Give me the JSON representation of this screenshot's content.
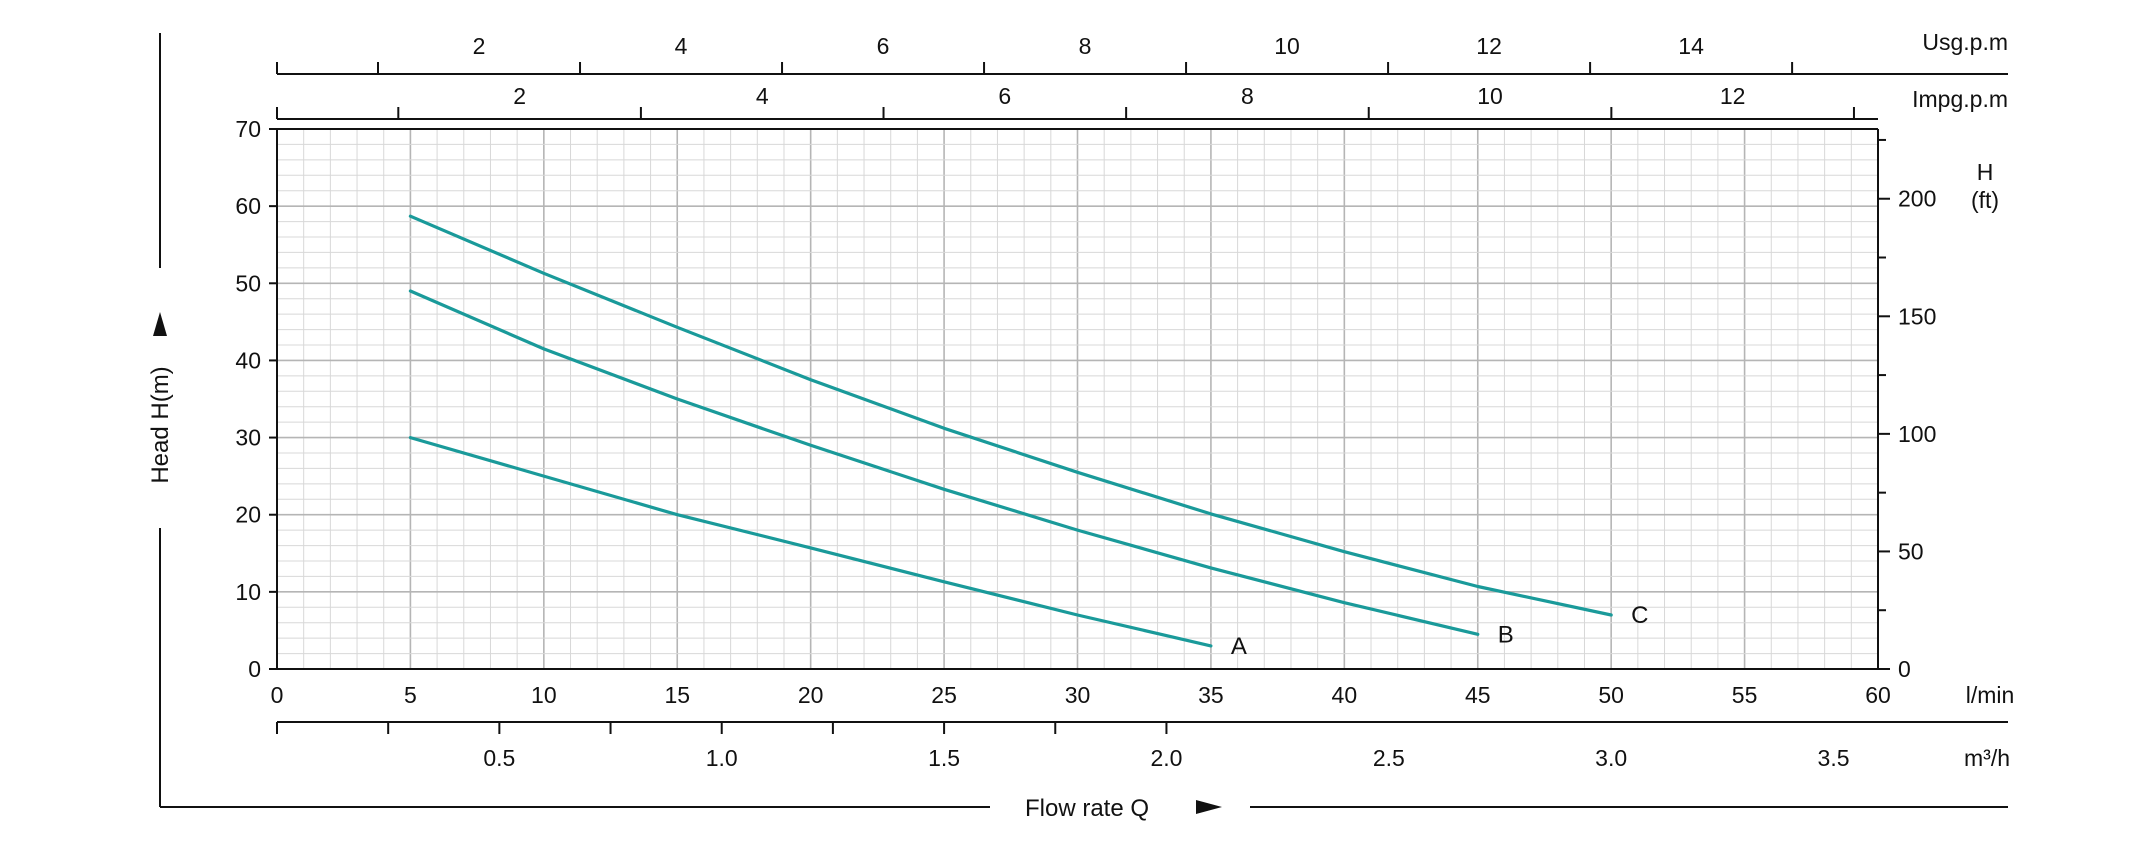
{
  "chart_data": {
    "type": "line",
    "title": "",
    "xlabel": "Flow rate Q",
    "ylabel": "Head H(m)",
    "x_unit": "l/min",
    "xlim": [
      0,
      60
    ],
    "ylim": [
      0,
      70
    ],
    "x_ticks": [
      0,
      5,
      10,
      15,
      20,
      25,
      30,
      35,
      40,
      45,
      50,
      55,
      60
    ],
    "y_ticks": [
      0,
      10,
      20,
      30,
      40,
      50,
      60,
      70
    ],
    "grid": true,
    "series": [
      {
        "name": "A",
        "x": [
          5,
          10,
          15,
          20,
          25,
          30,
          35
        ],
        "y": [
          30,
          25,
          20,
          15.7,
          11.3,
          7.0,
          3.0
        ]
      },
      {
        "name": "B",
        "x": [
          5,
          10,
          15,
          20,
          25,
          30,
          35,
          40,
          45
        ],
        "y": [
          49,
          41.5,
          35.0,
          29.0,
          23.3,
          18.0,
          13.1,
          8.6,
          4.5
        ]
      },
      {
        "name": "C",
        "x": [
          5,
          10,
          15,
          20,
          25,
          30,
          35,
          40,
          45,
          50
        ],
        "y": [
          58.7,
          51.3,
          44.3,
          37.5,
          31.2,
          25.5,
          20.1,
          15.2,
          10.7,
          7.0
        ]
      }
    ],
    "right_axis": {
      "label_line1": "H",
      "label_line2": "(ft)",
      "ticks": [
        0,
        50,
        100,
        150,
        200
      ],
      "ft_per_m": 3.2808
    },
    "top_axis_usg": {
      "unit": "Usg.p.m",
      "ticks": [
        2,
        4,
        6,
        8,
        10,
        12,
        14
      ],
      "lpm_per_unit": 3.7854
    },
    "top_axis_imp": {
      "unit": "Impg.p.m",
      "ticks": [
        2,
        4,
        6,
        8,
        10,
        12
      ],
      "lpm_per_unit": 4.54609
    },
    "bottom_axis_m3h": {
      "unit": "m³/h",
      "ticks": [
        "0.5",
        "1.0",
        "1.5",
        "2.0",
        "2.5",
        "3.0",
        "3.5"
      ],
      "lpm_per_unit": 16.6667
    },
    "colors": {
      "curve": "#1a9a9a",
      "grid_major": "#b5b5b5",
      "grid_minor": "#d8d8d8",
      "axis": "#111111"
    }
  }
}
